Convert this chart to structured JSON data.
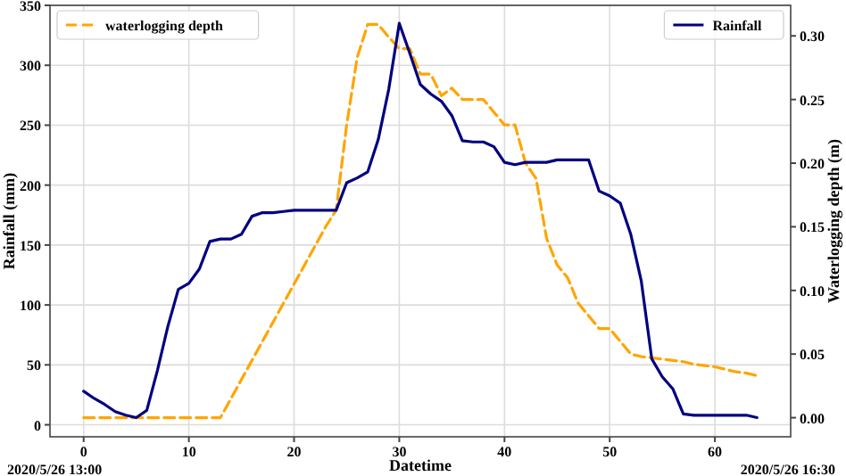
{
  "chart_data": {
    "type": "line",
    "xlabel": "Datetime",
    "ylabel": "Rainfall (mm)",
    "y2label": "Waterlogging depth (m)",
    "x": [
      0,
      1,
      2,
      3,
      4,
      5,
      6,
      7,
      8,
      9,
      10,
      11,
      12,
      13,
      14,
      15,
      16,
      17,
      18,
      19,
      20,
      21,
      22,
      23,
      24,
      25,
      26,
      27,
      28,
      29,
      30,
      31,
      32,
      33,
      34,
      35,
      36,
      37,
      38,
      39,
      40,
      41,
      42,
      43,
      44,
      45,
      46,
      47,
      48,
      49,
      50,
      51,
      52,
      53,
      54,
      55,
      56,
      57,
      58,
      59,
      60,
      61,
      62,
      63,
      64
    ],
    "series": [
      {
        "name": "waterlogging depth",
        "color": "#ffa500",
        "axis": "y2",
        "line_style": "dashed",
        "values": [
          0,
          0,
          0,
          0,
          0,
          0,
          0,
          0,
          0,
          0,
          0,
          0,
          0,
          0,
          0.015,
          0.03,
          0.045,
          0.06,
          0.075,
          0.09,
          0.105,
          0.12,
          0.135,
          0.15,
          0.163,
          0.23,
          0.283,
          0.309,
          0.309,
          0.299,
          0.29,
          0.29,
          0.27,
          0.27,
          0.253,
          0.259,
          0.25,
          0.25,
          0.25,
          0.24,
          0.23,
          0.23,
          0.2,
          0.188,
          0.141,
          0.12,
          0.11,
          0.09,
          0.08,
          0.07,
          0.07,
          0.06,
          0.05,
          0.048,
          0.047,
          0.046,
          0.045,
          0.044,
          0.042,
          0.041,
          0.04,
          0.038,
          0.036,
          0.035,
          0.033
        ]
      },
      {
        "name": "Rainfall",
        "color": "#000080",
        "line_style": "solid",
        "values": [
          28,
          22,
          17,
          11,
          8,
          6,
          12,
          45,
          82,
          113,
          118,
          130,
          153,
          155,
          155,
          159,
          174,
          177,
          177,
          178,
          179,
          179,
          179,
          179,
          179,
          202,
          206,
          211,
          238,
          280,
          335,
          310,
          284,
          276,
          270,
          258,
          237,
          236,
          236,
          232,
          219,
          217,
          219,
          219,
          219,
          221,
          221,
          221,
          221,
          195,
          191,
          185,
          159,
          120,
          55,
          40,
          30,
          9,
          8,
          8,
          8,
          8,
          8,
          8,
          6
        ]
      }
    ],
    "xlim": [
      -3.2,
      67.2
    ],
    "xticks": [
      0,
      10,
      20,
      30,
      40,
      50,
      60
    ],
    "ylim": [
      -10,
      350
    ],
    "yticks": [
      0,
      50,
      100,
      150,
      200,
      250,
      300,
      350
    ],
    "y2lim": [
      -0.015,
      0.324
    ],
    "y2ticks": [
      {
        "value": 0,
        "label": "0.00"
      },
      {
        "value": 0.05,
        "label": "0.05"
      },
      {
        "value": 0.1,
        "label": "0.10"
      },
      {
        "value": 0.15,
        "label": "0.15"
      },
      {
        "value": 0.2,
        "label": "0.20"
      },
      {
        "value": 0.25,
        "label": "0.25"
      },
      {
        "value": 0.3,
        "label": "0.30"
      }
    ],
    "grid": true,
    "legend": "top",
    "annotations": [
      "2020/5/26 13:00",
      "2020/5/26 16:30"
    ]
  }
}
